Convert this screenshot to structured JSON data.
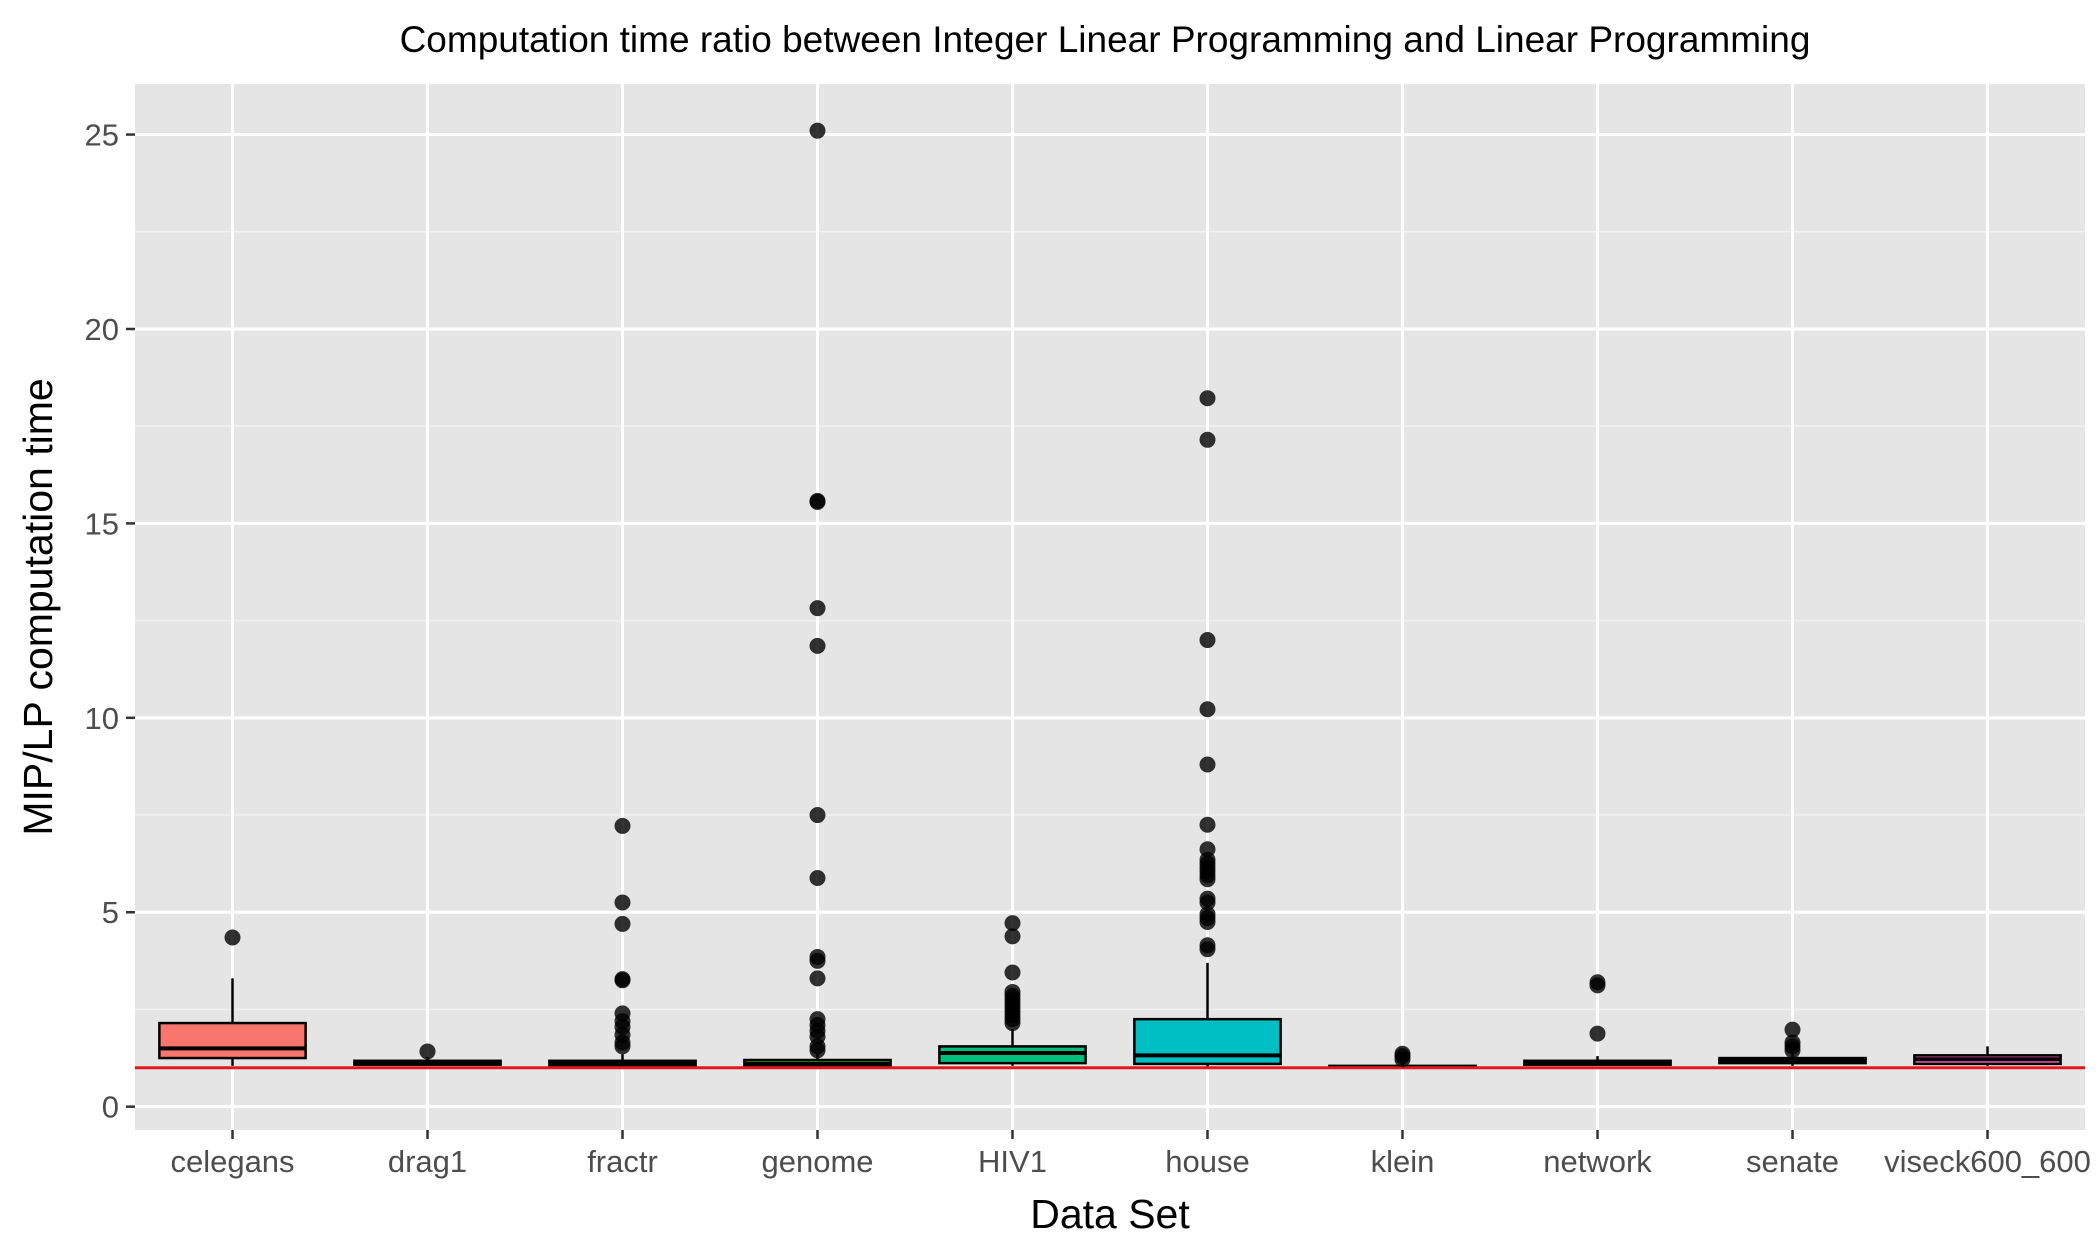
{
  "chart_data": {
    "type": "boxplot",
    "title": "Computation time ratio between Integer Linear Programming and Linear Programming",
    "xlabel": "Data Set",
    "ylabel": "MIP/LP computation time",
    "ylim": [
      -0.6,
      26.3
    ],
    "yticks": [
      0,
      5,
      10,
      15,
      20,
      25
    ],
    "grid": true,
    "legend": "none",
    "reference_line": {
      "y": 1,
      "color": "#e31a1c"
    },
    "categories": [
      "celegans",
      "drag1",
      "fractr",
      "genome",
      "HIV1",
      "house",
      "klein",
      "network",
      "senate",
      "viseck600_600"
    ],
    "boxes": [
      {
        "name": "celegans",
        "color": "#f8766d",
        "whisker_low": 1.05,
        "q1": 1.25,
        "median": 1.5,
        "q3": 2.15,
        "whisker_high": 3.3,
        "outliers": [
          4.35
        ]
      },
      {
        "name": "drag1",
        "color": "#d89000",
        "whisker_low": 1.05,
        "q1": 1.08,
        "median": 1.12,
        "q3": 1.18,
        "whisker_high": 1.28,
        "outliers": [
          1.42
        ]
      },
      {
        "name": "fractr",
        "color": "#a3a500",
        "whisker_low": 1.0,
        "q1": 1.06,
        "median": 1.1,
        "q3": 1.18,
        "whisker_high": 1.35,
        "outliers": [
          1.55,
          1.65,
          1.85,
          2.05,
          2.2,
          2.4,
          3.25,
          3.28,
          4.7,
          5.25,
          7.22
        ]
      },
      {
        "name": "genome",
        "color": "#39b600",
        "whisker_low": 1.0,
        "q1": 1.06,
        "median": 1.1,
        "q3": 1.2,
        "whisker_high": 1.35,
        "outliers": [
          1.45,
          1.55,
          1.8,
          1.95,
          2.1,
          2.25,
          3.3,
          3.75,
          3.85,
          5.88,
          7.5,
          11.85,
          12.82,
          15.55,
          15.58,
          25.1
        ]
      },
      {
        "name": "HIV1",
        "color": "#00bf7d",
        "whisker_low": 1.05,
        "q1": 1.12,
        "median": 1.38,
        "q3": 1.55,
        "whisker_high": 2.0,
        "outliers": [
          2.15,
          2.25,
          2.35,
          2.45,
          2.55,
          2.65,
          2.75,
          2.85,
          2.95,
          3.45,
          4.38,
          4.72
        ]
      },
      {
        "name": "house",
        "color": "#00bfc4",
        "whisker_low": 1.0,
        "q1": 1.1,
        "median": 1.32,
        "q3": 2.25,
        "whisker_high": 3.7,
        "outliers": [
          4.05,
          4.15,
          4.75,
          4.85,
          4.95,
          5.25,
          5.35,
          5.85,
          5.95,
          6.05,
          6.15,
          6.25,
          6.35,
          6.62,
          7.25,
          8.8,
          10.22,
          12.0,
          17.15,
          18.22
        ]
      },
      {
        "name": "klein",
        "color": "#00b0f6",
        "whisker_low": 0.98,
        "q1": 1.0,
        "median": 1.02,
        "q3": 1.05,
        "whisker_high": 1.12,
        "outliers": [
          1.22,
          1.3,
          1.36
        ]
      },
      {
        "name": "network",
        "color": "#9590ff",
        "whisker_low": 1.05,
        "q1": 1.08,
        "median": 1.12,
        "q3": 1.18,
        "whisker_high": 1.3,
        "outliers": [
          1.88,
          3.12,
          3.2
        ]
      },
      {
        "name": "senate",
        "color": "#e76bf3",
        "whisker_low": 1.05,
        "q1": 1.12,
        "median": 1.18,
        "q3": 1.25,
        "whisker_high": 1.35,
        "outliers": [
          1.45,
          1.55,
          1.65,
          1.98
        ]
      },
      {
        "name": "viseck600_600",
        "color": "#ff62bc",
        "whisker_low": 1.05,
        "q1": 1.1,
        "median": 1.22,
        "q3": 1.32,
        "whisker_high": 1.55,
        "outliers": []
      }
    ]
  }
}
